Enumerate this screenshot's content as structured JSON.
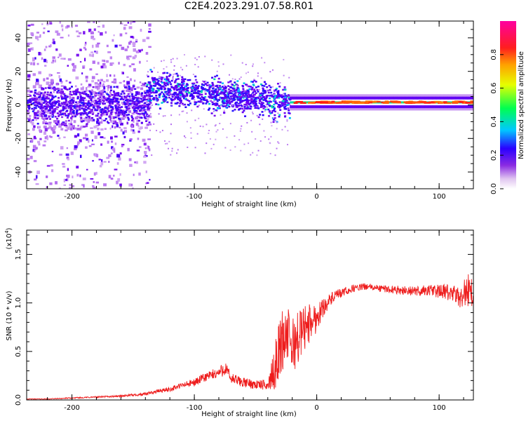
{
  "title": "C2E4.2023.291.07.58.R01",
  "colors": {
    "snr_line": "#ee1c1c",
    "axis": "#000000",
    "spectrogram_low": "#e2c8f4",
    "spectrogram_mid": "#6b00f2",
    "spectrogram_high": "#ff1a1a"
  },
  "chart_data": [
    {
      "type": "heatmap",
      "name": "spectrogram",
      "xlabel": "Height of straight line (km)",
      "ylabel": "Frequency (Hz)",
      "xlim": [
        -237,
        128
      ],
      "ylim": [
        -50,
        50
      ],
      "x_ticks": [
        -200,
        -100,
        0,
        100
      ],
      "y_ticks": [
        -40,
        -20,
        0,
        20,
        40
      ],
      "colorbar": {
        "label": "Normalized spectral amplitude",
        "range": [
          0,
          1
        ],
        "ticks": [
          "0.0",
          "0.2",
          "0.4",
          "0.6",
          "0.8"
        ],
        "colormap": "rainbow"
      },
      "features": [
        {
          "x_range": [
            -237,
            -140
          ],
          "freq_center": 0,
          "freq_spread": 45,
          "amplitude": 0.2
        },
        {
          "x_range": [
            -140,
            -20
          ],
          "freq_center_start": 10,
          "freq_center_end": 0,
          "freq_spread": 15,
          "amplitude": 0.35
        },
        {
          "x_range": [
            -20,
            128
          ],
          "freq_center": 1.5,
          "freq_spread": 3,
          "amplitude": 0.7
        }
      ]
    },
    {
      "type": "line",
      "name": "snr",
      "xlabel": "Height of straight line (km)",
      "ylabel": "SNR (10 * v/v)",
      "y_multiplier": "(x10",
      "y_multiplier_exp": "4",
      "y_multiplier_close": ")",
      "xlim": [
        -237,
        128
      ],
      "ylim": [
        0,
        1.75
      ],
      "x_ticks": [
        -200,
        -100,
        0,
        100
      ],
      "y_ticks": [
        "0.0",
        "0.5",
        "1.0",
        "1.5"
      ],
      "series": [
        {
          "x": [
            -237,
            -220,
            -200,
            -180,
            -160,
            -150,
            -140,
            -130,
            -120,
            -110,
            -100,
            -90,
            -80,
            -75,
            -70,
            -60,
            -50,
            -40,
            -35,
            -30,
            -25,
            -20,
            -15,
            -10,
            -5,
            0,
            5,
            10,
            15,
            20,
            30,
            40,
            50,
            60,
            70,
            80,
            90,
            100,
            110,
            115,
            120,
            125,
            128
          ],
          "values": [
            0.01,
            0.01,
            0.02,
            0.03,
            0.04,
            0.05,
            0.06,
            0.09,
            0.11,
            0.15,
            0.18,
            0.24,
            0.28,
            0.33,
            0.22,
            0.18,
            0.16,
            0.15,
            0.3,
            0.55,
            0.7,
            0.55,
            0.65,
            0.75,
            0.8,
            0.85,
            0.95,
            1.02,
            1.07,
            1.1,
            1.15,
            1.17,
            1.15,
            1.14,
            1.13,
            1.12,
            1.13,
            1.12,
            1.1,
            1.05,
            1.1,
            1.15,
            1.05
          ],
          "noise_amp": [
            0.004,
            0.004,
            0.006,
            0.008,
            0.01,
            0.012,
            0.015,
            0.02,
            0.025,
            0.03,
            0.04,
            0.05,
            0.06,
            0.08,
            0.06,
            0.05,
            0.05,
            0.05,
            0.2,
            0.35,
            0.3,
            0.3,
            0.28,
            0.25,
            0.2,
            0.15,
            0.1,
            0.07,
            0.06,
            0.05,
            0.04,
            0.035,
            0.035,
            0.04,
            0.045,
            0.05,
            0.06,
            0.07,
            0.09,
            0.12,
            0.15,
            0.18,
            0.2
          ]
        }
      ]
    }
  ]
}
